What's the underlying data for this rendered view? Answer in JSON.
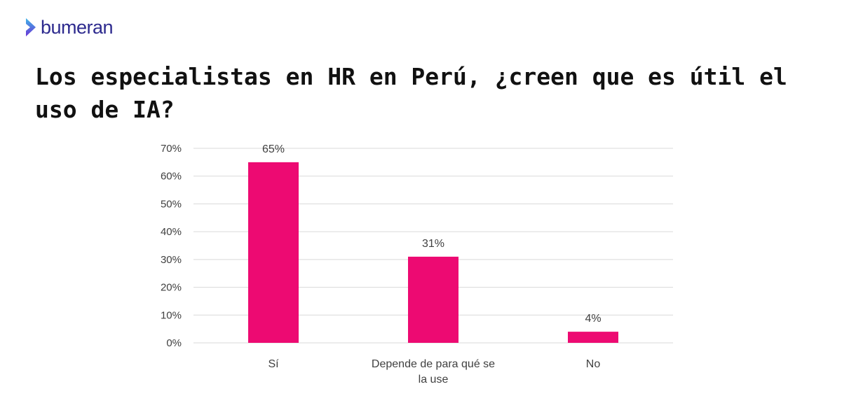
{
  "brand": {
    "name": "bumeran",
    "accent_color": "#2d2a8e",
    "chevron_colors": [
      "#3fb6e8",
      "#6b34d6"
    ],
    "chevron_icon": "chevron-right-icon"
  },
  "chart_data": {
    "type": "bar",
    "title": "Los especialistas en HR en Perú, ¿creen que es útil el uso de IA?",
    "xlabel": "",
    "ylabel": "",
    "categories": [
      [
        "Sí"
      ],
      [
        "Depende de para qué se",
        "la use"
      ],
      [
        "No"
      ]
    ],
    "values": [
      65,
      31,
      4
    ],
    "data_labels": [
      "65%",
      "31%",
      "4%"
    ],
    "yticks": [
      "0%",
      "10%",
      "20%",
      "30%",
      "40%",
      "50%",
      "60%",
      "70%"
    ],
    "ylim": [
      0,
      70
    ],
    "grid": true,
    "legend": "none",
    "bar_color": "#ed0a72",
    "grid_color": "#d9d9d9"
  }
}
